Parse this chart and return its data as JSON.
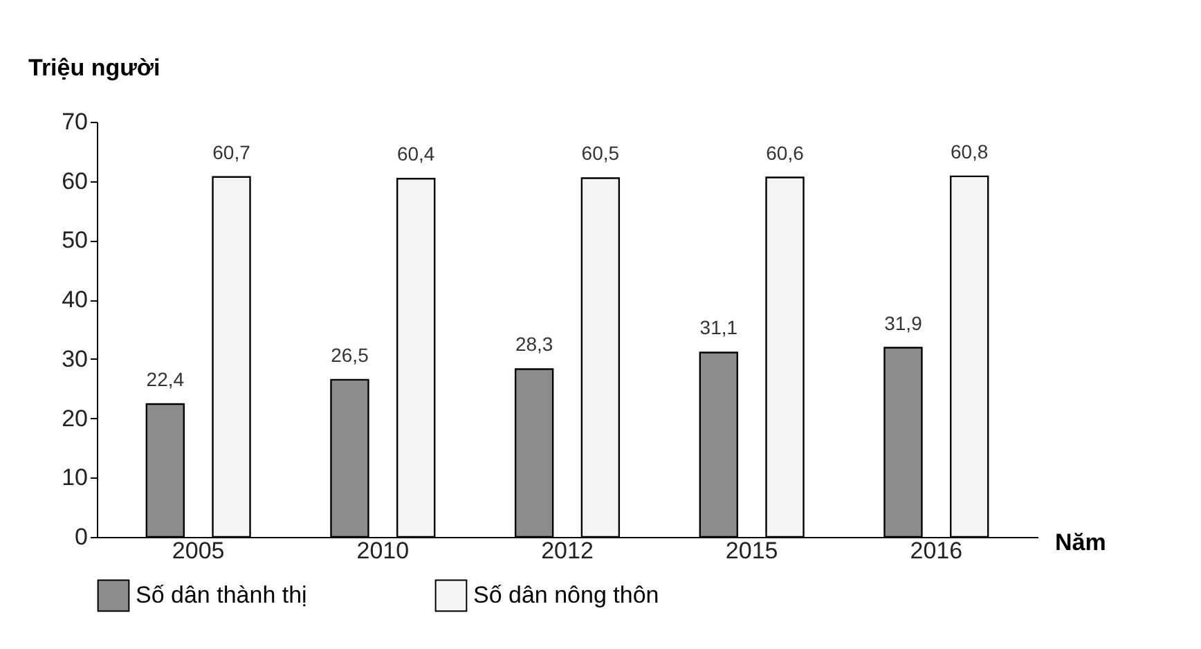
{
  "chart_data": {
    "type": "bar",
    "xlabel": "Năm",
    "ylabel": "Triệu người",
    "categories": [
      "2005",
      "2010",
      "2012",
      "2015",
      "2016"
    ],
    "series": [
      {
        "name": "Số dân thành thị",
        "color": "#8c8c8c",
        "values": [
          22.4,
          26.5,
          28.3,
          31.1,
          31.9
        ],
        "value_labels": [
          "22,4",
          "26,5",
          "28,3",
          "31,1",
          "31,9"
        ]
      },
      {
        "name": "Số dân nông thôn",
        "color": "#f4f4f4",
        "values": [
          60.7,
          60.4,
          60.5,
          60.6,
          60.8
        ],
        "value_labels": [
          "60,7",
          "60,4",
          "60,5",
          "60,6",
          "60,8"
        ]
      }
    ],
    "ylim": [
      0,
      70
    ],
    "yticks": [
      0,
      10,
      20,
      30,
      40,
      50,
      60,
      70
    ],
    "grid": false,
    "legend": "bottom"
  }
}
